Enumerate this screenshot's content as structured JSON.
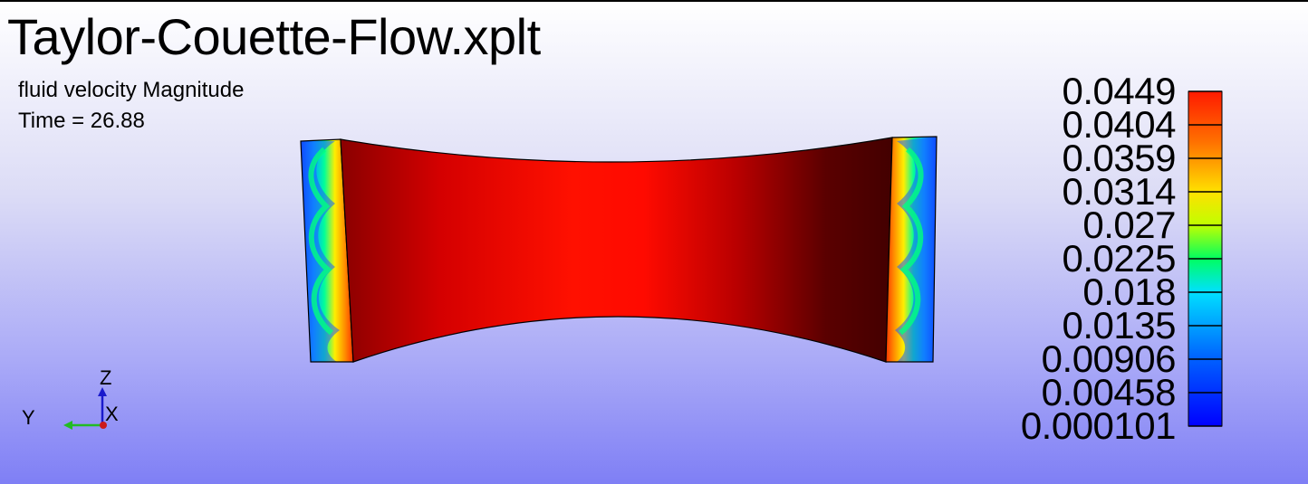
{
  "window": {
    "title": "Taylor-Couette-Flow.xplt",
    "variable_label": "fluid velocity Magnitude",
    "time_label": "Time = 26.88"
  },
  "legend": {
    "title": "fluid velocity Magnitude",
    "ticks": [
      "0.0449",
      "0.0404",
      "0.0359",
      "0.0314",
      "0.027",
      "0.0225",
      "0.018",
      "0.0135",
      "0.00906",
      "0.00458",
      "0.000101"
    ],
    "min": 0.000101,
    "max": 0.0449,
    "colors": [
      "#ff0000",
      "#ff6000",
      "#ffb000",
      "#e8f000",
      "#00d800",
      "#00ffc0",
      "#00a0ff",
      "#0040ff",
      "#0000ff"
    ]
  },
  "triad": {
    "z_label": "Z",
    "y_label": "Y",
    "x_label": "X",
    "z_color": "#1a1acc",
    "y_color": "#22bb22",
    "x_color": "#cc1a1a"
  },
  "model": {
    "name": "Taylor-Couette cylinder section",
    "inner_colors": [
      "#ff2200",
      "#ffaa00",
      "#ffff00",
      "#00ff66",
      "#00ccff",
      "#0066ff",
      "#0000dd"
    ]
  }
}
